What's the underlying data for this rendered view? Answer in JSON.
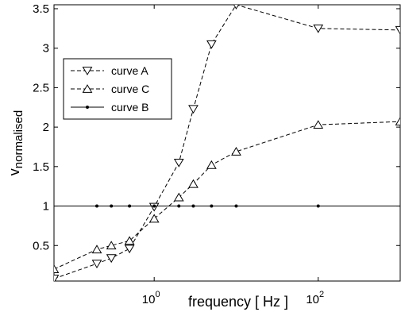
{
  "chart_data": {
    "type": "line",
    "title": "",
    "xlabel": "frequency [ Hz ]",
    "ylabel": {
      "main": "v",
      "subscript": "normalised"
    },
    "x_scale": "log",
    "xlim": [
      0.06,
      1000
    ],
    "ylim": [
      0.05,
      3.55
    ],
    "x_ticks": [
      {
        "value": 1,
        "base": "10",
        "exponent": "0"
      },
      {
        "value": 100,
        "base": "10",
        "exponent": "2"
      }
    ],
    "y_ticks": [
      {
        "value": 0.5,
        "label": "0.5"
      },
      {
        "value": 1,
        "label": "1"
      },
      {
        "value": 1.5,
        "label": "1.5"
      },
      {
        "value": 2,
        "label": "2"
      },
      {
        "value": 2.5,
        "label": "2.5"
      },
      {
        "value": 3,
        "label": "3"
      },
      {
        "value": 3.5,
        "label": "3.5"
      }
    ],
    "grid": false,
    "legend_position": "upper-left",
    "series": [
      {
        "name": "curve A",
        "marker": "triangle-down",
        "line": "dashed",
        "color": "#000000",
        "x": [
          0.06,
          0.2,
          0.3,
          0.5,
          1,
          2,
          3,
          5,
          10,
          100,
          1000
        ],
        "y": [
          0.08,
          0.27,
          0.34,
          0.46,
          0.99,
          1.55,
          2.23,
          3.05,
          3.55,
          3.25,
          3.23
        ]
      },
      {
        "name": "curve C",
        "marker": "triangle-up",
        "line": "dashed",
        "color": "#000000",
        "x": [
          0.06,
          0.2,
          0.3,
          0.5,
          1,
          2,
          3,
          5,
          10,
          100,
          1000
        ],
        "y": [
          0.2,
          0.45,
          0.5,
          0.56,
          0.84,
          1.11,
          1.28,
          1.52,
          1.69,
          2.03,
          2.07
        ]
      },
      {
        "name": "curve B",
        "marker": "dot",
        "line": "solid",
        "color": "#000000",
        "x": [
          0.2,
          0.3,
          0.5,
          1,
          2,
          3,
          5,
          10,
          100
        ],
        "y": [
          1,
          1,
          1,
          1,
          1,
          1,
          1,
          1,
          1
        ]
      }
    ]
  }
}
